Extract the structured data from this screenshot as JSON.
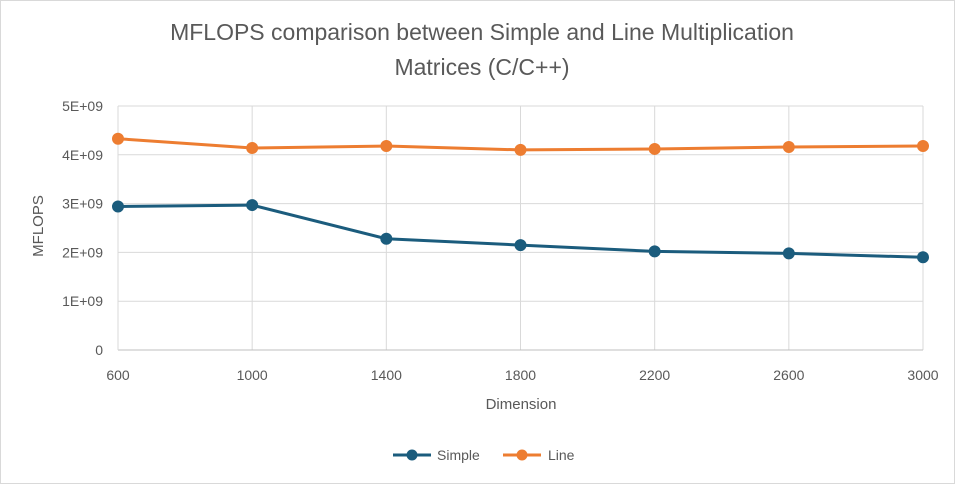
{
  "chart_data": {
    "type": "line",
    "title_lines": [
      "MFLOPS comparison between Simple and Line Multiplication",
      "Matrices (C/C++)"
    ],
    "xlabel": "Dimension",
    "ylabel": "MFLOPS",
    "x": [
      600,
      1000,
      1400,
      1800,
      2200,
      2600,
      3000
    ],
    "x_tick_labels": [
      "600",
      "1000",
      "1400",
      "1800",
      "2200",
      "2600",
      "3000"
    ],
    "y_ticks": [
      0,
      1000000000,
      2000000000,
      3000000000,
      4000000000,
      5000000000
    ],
    "y_tick_labels": [
      "0",
      "1E+09",
      "2E+09",
      "3E+09",
      "4E+09",
      "5E+09"
    ],
    "ylim": [
      0,
      5000000000
    ],
    "grid": true,
    "legend_position": "bottom",
    "series": [
      {
        "name": "Simple",
        "color": "#1b5c7d",
        "values": [
          2940000000,
          2970000000,
          2280000000,
          2150000000,
          2020000000,
          1980000000,
          1900000000
        ]
      },
      {
        "name": "Line",
        "color": "#ed7d31",
        "values": [
          4330000000,
          4140000000,
          4180000000,
          4100000000,
          4120000000,
          4160000000,
          4180000000
        ]
      }
    ]
  }
}
